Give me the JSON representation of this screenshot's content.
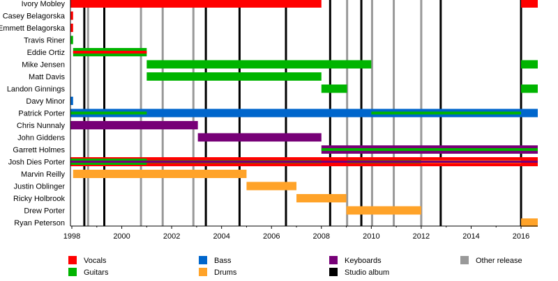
{
  "chart_data": {
    "type": "timeline",
    "title": "",
    "xlim": [
      1997.95,
      2016.67
    ],
    "x_ticks": [
      1998,
      2000,
      2002,
      2004,
      2006,
      2008,
      2010,
      2012,
      2014,
      2016
    ],
    "colors": {
      "Vocals": "#ff0000",
      "Guitars": "#00b400",
      "Bass": "#0066cc",
      "Keyboards": "#770077",
      "Drums": "#ffa329",
      "Other release": "#999999",
      "Studio album": "#000000"
    },
    "studio_albums": [
      1998.5,
      1999.3,
      2003.37,
      2004.72,
      2006.58,
      2008.35,
      2009.6,
      2012.78,
      2016.0
    ],
    "other_releases": [
      1998.65,
      2000.77,
      2001.64,
      2002.87,
      2009.03,
      2010.03,
      2010.9,
      2012.0
    ],
    "members": [
      {
        "name": "Ivory Mobley",
        "roles": [
          {
            "role": "Vocals",
            "from": 1997.95,
            "to": 2008.0
          },
          {
            "role": "Vocals",
            "from": 2016.0,
            "to": 2016.67
          }
        ]
      },
      {
        "name": "Casey Belagorska",
        "roles": [
          {
            "role": "Vocals",
            "from": 1997.95,
            "to": 1998.05
          }
        ]
      },
      {
        "name": "Emmett Belagorska",
        "roles": [
          {
            "role": "Vocals",
            "from": 1997.95,
            "to": 1998.05
          }
        ]
      },
      {
        "name": "Travis Riner",
        "roles": [
          {
            "role": "Guitars",
            "from": 1997.95,
            "to": 1998.05
          }
        ]
      },
      {
        "name": "Eddie Ortiz",
        "roles": [
          {
            "role": "Guitars",
            "from": 1998.05,
            "to": 2001.0
          },
          {
            "role": "Vocals",
            "from": 1998.05,
            "to": 2001.0,
            "inner": true
          }
        ]
      },
      {
        "name": "Mike Jensen",
        "roles": [
          {
            "role": "Guitars",
            "from": 2001.0,
            "to": 2010.0
          },
          {
            "role": "Guitars",
            "from": 2016.0,
            "to": 2016.67
          }
        ]
      },
      {
        "name": "Matt Davis",
        "roles": [
          {
            "role": "Guitars",
            "from": 2001.0,
            "to": 2008.0
          }
        ]
      },
      {
        "name": "Landon Ginnings",
        "roles": [
          {
            "role": "Guitars",
            "from": 2008.0,
            "to": 2009.03
          },
          {
            "role": "Guitars",
            "from": 2016.0,
            "to": 2016.67
          }
        ]
      },
      {
        "name": "Davy Minor",
        "roles": [
          {
            "role": "Bass",
            "from": 1997.95,
            "to": 1998.05
          }
        ]
      },
      {
        "name": "Patrick Porter",
        "roles": [
          {
            "role": "Bass",
            "from": 1997.95,
            "to": 2016.67
          },
          {
            "role": "Guitars",
            "from": 1997.95,
            "to": 2001.0,
            "inner": true
          },
          {
            "role": "Guitars",
            "from": 2010.0,
            "to": 2016.0,
            "inner": true
          }
        ]
      },
      {
        "name": "Chris Nunnaly",
        "roles": [
          {
            "role": "Keyboards",
            "from": 1997.95,
            "to": 2003.05
          }
        ]
      },
      {
        "name": "John Giddens",
        "roles": [
          {
            "role": "Keyboards",
            "from": 2003.05,
            "to": 2008.0
          }
        ]
      },
      {
        "name": "Garrett Holmes",
        "roles": [
          {
            "role": "Keyboards",
            "from": 2008.0,
            "to": 2016.67
          },
          {
            "role": "Guitars",
            "from": 2008.0,
            "to": 2016.67,
            "inner": true
          }
        ]
      },
      {
        "name": "Josh Dies Porter",
        "roles": [
          {
            "role": "Vocals",
            "from": 1997.95,
            "to": 2016.67
          },
          {
            "role": "Guitars",
            "from": 1997.95,
            "to": 2001.0
          },
          {
            "role": "Guitars",
            "from": 2001.0,
            "to": 2008.0,
            "inner": true
          },
          {
            "role": "Guitars",
            "from": 2009.03,
            "to": 2012.0,
            "inner": true
          },
          {
            "role": "Drums",
            "from": 2012.0,
            "to": 2016.0,
            "inner": true
          },
          {
            "role": "Keyboards",
            "from": 1997.95,
            "to": 2016.67,
            "core": true
          }
        ]
      },
      {
        "name": "Marvin Reilly",
        "roles": [
          {
            "role": "Drums",
            "from": 1998.05,
            "to": 2005.0
          }
        ]
      },
      {
        "name": "Justin Oblinger",
        "roles": [
          {
            "role": "Drums",
            "from": 2005.0,
            "to": 2007.0
          }
        ]
      },
      {
        "name": "Ricky Holbrook",
        "roles": [
          {
            "role": "Drums",
            "from": 2007.0,
            "to": 2009.0
          }
        ]
      },
      {
        "name": "Drew Porter",
        "roles": [
          {
            "role": "Drums",
            "from": 2009.0,
            "to": 2012.0
          }
        ]
      },
      {
        "name": "Ryan Peterson",
        "roles": [
          {
            "role": "Drums",
            "from": 2016.0,
            "to": 2016.67
          }
        ]
      }
    ],
    "legend": [
      {
        "label": "Vocals",
        "color": "#ff0000"
      },
      {
        "label": "Guitars",
        "color": "#00b400"
      },
      {
        "label": "Bass",
        "color": "#0066cc"
      },
      {
        "label": "Drums",
        "color": "#ffa329"
      },
      {
        "label": "Keyboards",
        "color": "#770077"
      },
      {
        "label": "Studio album",
        "color": "#000000"
      },
      {
        "label": "Other release",
        "color": "#999999"
      }
    ],
    "legend_position": "bottom"
  }
}
